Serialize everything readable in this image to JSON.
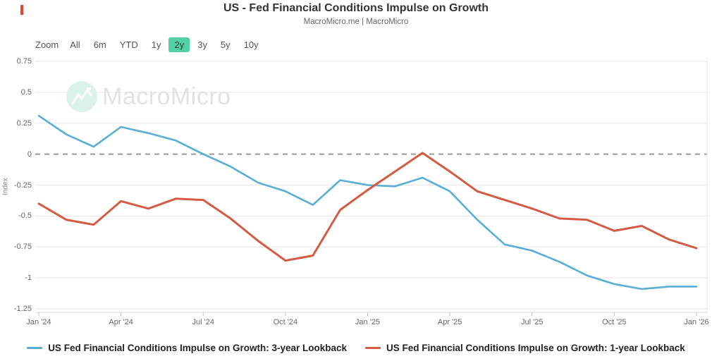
{
  "header": {
    "title": "US - Fed Financial Conditions Impulse on Growth",
    "subtitle": "MacroMicro.me | MacroMicro",
    "accent_color": "#e8432e"
  },
  "toolbar": {
    "zoom_label": "Zoom",
    "buttons": [
      "All",
      "6m",
      "YTD",
      "1y",
      "2y",
      "3y",
      "5y",
      "10y"
    ],
    "selected": "2y",
    "selected_bg": "#52d1a4"
  },
  "watermark": {
    "text": "MacroMicro",
    "logo_icon": "mountain-chart-icon",
    "logo_bg": "#daf2e8"
  },
  "axes": {
    "y_title": "Index",
    "yticks": [
      {
        "value": 0.75,
        "label": "0.75"
      },
      {
        "value": 0.5,
        "label": "0.5"
      },
      {
        "value": 0.25,
        "label": "0.25"
      },
      {
        "value": 0,
        "label": "0"
      },
      {
        "value": -0.25,
        "label": "-0.25"
      },
      {
        "value": -0.5,
        "label": "-0.5"
      },
      {
        "value": -0.75,
        "label": "-0.75"
      },
      {
        "value": -1,
        "label": "-1"
      },
      {
        "value": -1.25,
        "label": "-1.25"
      }
    ],
    "xticks": [
      {
        "month_index": 0,
        "label": "Jan '24"
      },
      {
        "month_index": 3,
        "label": "Apr '24"
      },
      {
        "month_index": 6,
        "label": "Jul '24"
      },
      {
        "month_index": 9,
        "label": "Oct '24"
      },
      {
        "month_index": 12,
        "label": "Jan '25"
      },
      {
        "month_index": 15,
        "label": "Apr '25"
      },
      {
        "month_index": 18,
        "label": "Jul '25"
      },
      {
        "month_index": 21,
        "label": "Oct '25"
      },
      {
        "month_index": 24,
        "label": "Jan '26"
      }
    ]
  },
  "chart_data": {
    "type": "line",
    "title": "US - Fed Financial Conditions Impulse on Growth",
    "ylabel": "Index",
    "ylim": [
      -1.25,
      0.75
    ],
    "grid": true,
    "zero_line_dashed": true,
    "legend_position": "bottom",
    "categories": [
      "Jan '24",
      "Feb '24",
      "Mar '24",
      "Apr '24",
      "May '24",
      "Jun '24",
      "Jul '24",
      "Aug '24",
      "Sep '24",
      "Oct '24",
      "Nov '24",
      "Dec '24",
      "Jan '25",
      "Feb '25",
      "Mar '25",
      "Apr '25",
      "May '25",
      "Jun '25",
      "Jul '25",
      "Aug '25",
      "Sep '25",
      "Oct '25",
      "Nov '25",
      "Dec '25",
      "Jan '26"
    ],
    "series": [
      {
        "name": "US Fed Financial Conditions Impulse on Growth: 3-year Lookback",
        "color": "#58aed6",
        "values": [
          0.31,
          0.16,
          0.06,
          0.22,
          0.17,
          0.11,
          0.0,
          -0.1,
          -0.23,
          -0.3,
          -0.41,
          -0.21,
          -0.25,
          -0.26,
          -0.19,
          -0.3,
          -0.53,
          -0.73,
          -0.78,
          -0.87,
          -0.98,
          -1.05,
          -1.09,
          -1.07,
          -1.07
        ]
      },
      {
        "name": "US Fed Financial Conditions Impulse on Growth: 1-year Lookback",
        "color": "#d55a42",
        "values": [
          -0.4,
          -0.53,
          -0.57,
          -0.38,
          -0.44,
          -0.36,
          -0.37,
          -0.52,
          -0.7,
          -0.86,
          -0.82,
          -0.45,
          -0.29,
          -0.14,
          0.01,
          -0.14,
          -0.3,
          -0.37,
          -0.44,
          -0.52,
          -0.53,
          -0.62,
          -0.58,
          -0.69,
          -0.76
        ]
      }
    ]
  },
  "colors": {
    "gridline": "#e6e6e6",
    "zero_line": "#999999",
    "axis_line": "#d8d8d8",
    "tick_mark": "#c0c0c0"
  }
}
